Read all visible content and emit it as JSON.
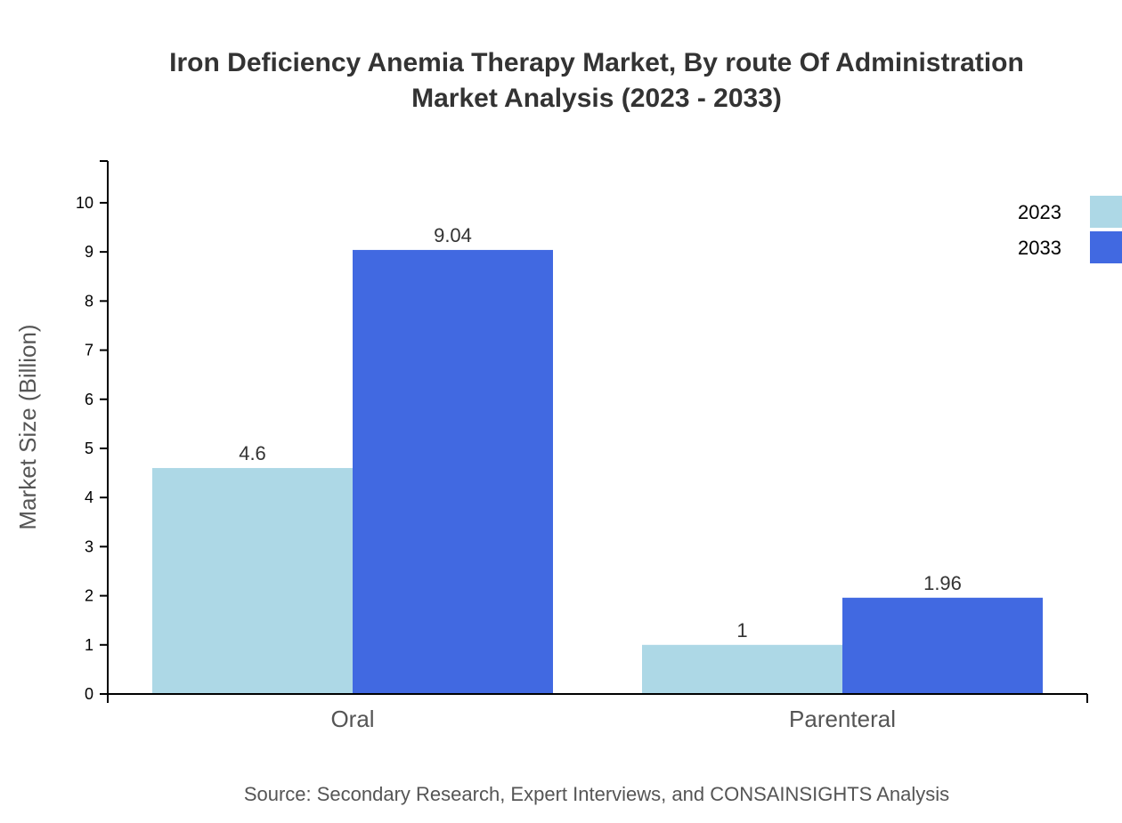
{
  "chart_data": {
    "type": "bar",
    "title_lines": [
      "Iron Deficiency Anemia Therapy Market, By route Of Administration",
      "Market Analysis (2023 - 2033)"
    ],
    "xlabel": "",
    "ylabel": "Market Size (Billion)",
    "categories": [
      "Oral",
      "Parenteral"
    ],
    "series": [
      {
        "name": "2023",
        "color": "#ADD8E6",
        "values": [
          4.6,
          1
        ]
      },
      {
        "name": "2033",
        "color": "#4169E1",
        "values": [
          9.04,
          1.96
        ]
      }
    ],
    "ylim": [
      0,
      10.85
    ],
    "yticks": [
      0,
      1,
      2,
      3,
      4,
      5,
      6,
      7,
      8,
      9,
      10
    ],
    "grid": false,
    "legend_position": "top-right",
    "source": "Source: Secondary Research, Expert Interviews, and CONSAINSIGHTS Analysis"
  }
}
